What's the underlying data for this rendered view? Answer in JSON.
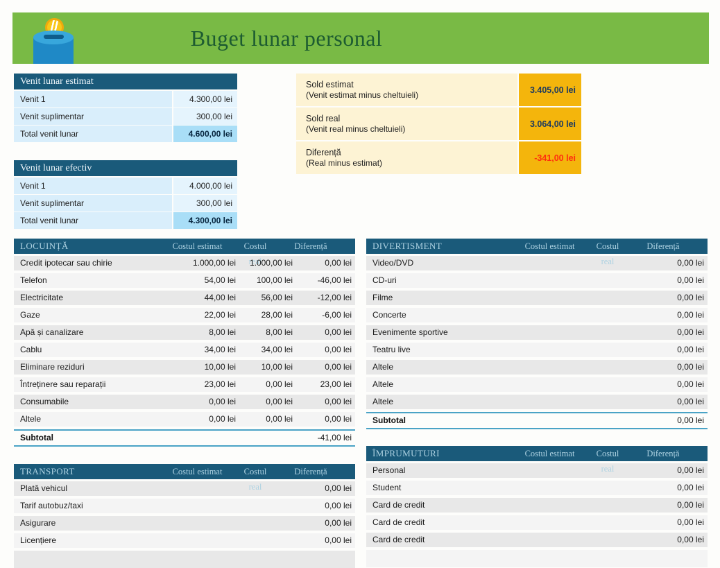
{
  "header": {
    "title": "Buget lunar personal",
    "icon": "coin-bank-icon"
  },
  "income_estimated": {
    "title": "Venit lunar estimat",
    "rows": [
      {
        "label": "Venit 1",
        "value": "4.300,00 lei"
      },
      {
        "label": "Venit suplimentar",
        "value": "300,00 lei"
      },
      {
        "label": "Total venit lunar",
        "value": "4.600,00 lei",
        "total": true
      }
    ]
  },
  "income_actual": {
    "title": "Venit lunar efectiv",
    "rows": [
      {
        "label": "Venit 1",
        "value": "4.000,00 lei"
      },
      {
        "label": "Venit suplimentar",
        "value": "300,00 lei"
      },
      {
        "label": "Total venit lunar",
        "value": "4.300,00 lei",
        "total": true
      }
    ]
  },
  "balance_summary": {
    "rows": [
      {
        "label": "Sold estimat",
        "sublabel": "(Venit estimat minus cheltuieli)",
        "value": "3.405,00 lei",
        "negative": false
      },
      {
        "label": "Sold real",
        "sublabel": "(Venit real minus cheltuieli)",
        "value": "3.064,00 lei",
        "negative": false
      },
      {
        "label": "Diferență",
        "sublabel": "(Real minus estimat)",
        "value": "-341,00 lei",
        "negative": true
      }
    ]
  },
  "columns": {
    "estimated": "Costul estimat",
    "real": "Costul real",
    "difference": "Diferență"
  },
  "expense_tables": [
    {
      "title": "LOCUINȚĂ",
      "rows": [
        [
          "Credit ipotecar sau chirie",
          "1.000,00 lei",
          "1.000,00 lei",
          "0,00 lei"
        ],
        [
          "Telefon",
          "54,00 lei",
          "100,00 lei",
          "-46,00 lei"
        ],
        [
          "Electricitate",
          "44,00 lei",
          "56,00 lei",
          "-12,00 lei"
        ],
        [
          "Gaze",
          "22,00 lei",
          "28,00 lei",
          "-6,00 lei"
        ],
        [
          "Apă și canalizare",
          "8,00 lei",
          "8,00 lei",
          "0,00 lei"
        ],
        [
          "Cablu",
          "34,00 lei",
          "34,00 lei",
          "0,00 lei"
        ],
        [
          "Eliminare reziduri",
          "10,00 lei",
          "10,00 lei",
          "0,00 lei"
        ],
        [
          "Întreținere sau reparații",
          "23,00 lei",
          "0,00 lei",
          "23,00 lei"
        ],
        [
          "Consumabile",
          "0,00 lei",
          "0,00 lei",
          "0,00 lei"
        ],
        [
          "Altele",
          "0,00 lei",
          "0,00 lei",
          "0,00 lei"
        ]
      ],
      "subtotal_label": "Subtotal",
      "subtotal_value": "-41,00 lei"
    },
    {
      "title": "DIVERTISMENT",
      "rows": [
        [
          "Video/DVD",
          "",
          "",
          "0,00 lei"
        ],
        [
          "CD-uri",
          "",
          "",
          "0,00 lei"
        ],
        [
          "Filme",
          "",
          "",
          "0,00 lei"
        ],
        [
          "Concerte",
          "",
          "",
          "0,00 lei"
        ],
        [
          "Evenimente sportive",
          "",
          "",
          "0,00 lei"
        ],
        [
          "Teatru live",
          "",
          "",
          "0,00 lei"
        ],
        [
          "Altele",
          "",
          "",
          "0,00 lei"
        ],
        [
          "Altele",
          "",
          "",
          "0,00 lei"
        ],
        [
          "Altele",
          "",
          "",
          "0,00 lei"
        ]
      ],
      "subtotal_label": "Subtotal",
      "subtotal_value": "0,00 lei"
    },
    {
      "title": "TRANSPORT",
      "rows": [
        [
          "Plată vehicul",
          "",
          "",
          "0,00 lei"
        ],
        [
          "Tarif autobuz/taxi",
          "",
          "",
          "0,00 lei"
        ],
        [
          "Asigurare",
          "",
          "",
          "0,00 lei"
        ],
        [
          "Licențiere",
          "",
          "",
          "0,00 lei"
        ]
      ]
    },
    {
      "title": "ÎMPRUMUTURI",
      "rows": [
        [
          "Personal",
          "",
          "",
          "0,00 lei"
        ],
        [
          "Student",
          "",
          "",
          "0,00 lei"
        ],
        [
          "Card de credit",
          "",
          "",
          "0,00 lei"
        ],
        [
          "Card de credit",
          "",
          "",
          "0,00 lei"
        ],
        [
          "Card de credit",
          "",
          "",
          "0,00 lei"
        ]
      ]
    }
  ],
  "colors": {
    "banner_green": "#79ba45",
    "title_green": "#1d5c31",
    "table_header_blue": "#1a5a7a",
    "income_row_blue": "#d9eefb",
    "income_total_blue": "#a9def7",
    "summary_label_cream": "#fdf3d4",
    "summary_gold": "#f4b50c",
    "negative_red": "#ff2e0e",
    "subtotal_border_blue": "#4aa3c6"
  }
}
